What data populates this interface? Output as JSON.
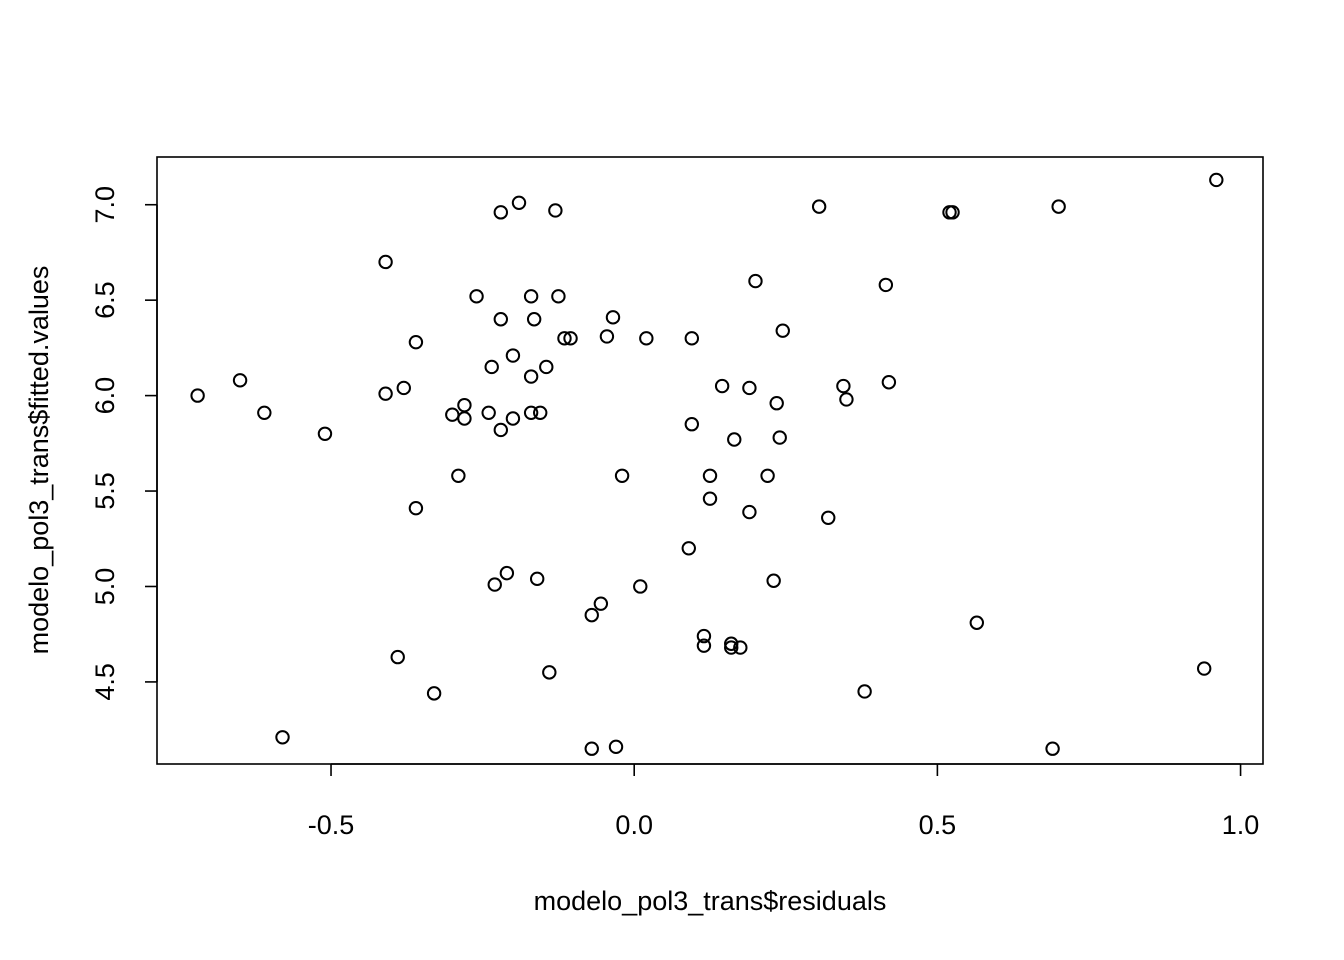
{
  "chart_data": {
    "type": "scatter",
    "title": "",
    "xlabel": "modelo_pol3_trans$residuals",
    "ylabel": "modelo_pol3_trans$fitted.values",
    "xlim": [
      -0.787,
      1.037
    ],
    "ylim": [
      4.07,
      7.25
    ],
    "xticks": [
      -0.5,
      0.0,
      0.5,
      1.0
    ],
    "xtick_labels": [
      "-0.5",
      "0.0",
      "0.5",
      "1.0"
    ],
    "yticks": [
      4.5,
      5.0,
      5.5,
      6.0,
      6.5,
      7.0
    ],
    "ytick_labels": [
      "4.5",
      "5.0",
      "5.5",
      "6.0",
      "6.5",
      "7.0"
    ],
    "grid": false,
    "legend": "none",
    "point_style": "open-circle",
    "color": "#000000",
    "x": [
      -0.72,
      -0.65,
      -0.61,
      -0.58,
      -0.51,
      -0.41,
      -0.41,
      -0.39,
      -0.38,
      -0.36,
      -0.36,
      -0.33,
      -0.3,
      -0.29,
      -0.28,
      -0.28,
      -0.26,
      -0.24,
      -0.235,
      -0.23,
      -0.22,
      -0.22,
      -0.22,
      -0.21,
      -0.2,
      -0.2,
      -0.19,
      -0.17,
      -0.17,
      -0.17,
      -0.165,
      -0.16,
      -0.155,
      -0.145,
      -0.14,
      -0.13,
      -0.125,
      -0.115,
      -0.105,
      -0.07,
      -0.07,
      -0.055,
      -0.045,
      -0.035,
      -0.03,
      -0.02,
      0.01,
      0.02,
      0.09,
      0.095,
      0.095,
      0.115,
      0.115,
      0.125,
      0.125,
      0.145,
      0.16,
      0.16,
      0.165,
      0.175,
      0.19,
      0.19,
      0.2,
      0.22,
      0.23,
      0.235,
      0.24,
      0.245,
      0.305,
      0.32,
      0.345,
      0.35,
      0.38,
      0.415,
      0.42,
      0.52,
      0.525,
      0.565,
      0.69,
      0.7,
      0.94,
      0.96
    ],
    "y": [
      6.0,
      6.08,
      5.91,
      4.21,
      5.8,
      6.7,
      6.01,
      4.63,
      6.04,
      6.28,
      5.41,
      4.44,
      5.9,
      5.58,
      5.95,
      5.88,
      6.52,
      5.91,
      6.15,
      5.01,
      6.96,
      6.4,
      5.82,
      5.07,
      6.21,
      5.88,
      7.01,
      6.52,
      6.1,
      5.91,
      6.4,
      5.04,
      5.91,
      6.15,
      4.55,
      6.97,
      6.52,
      6.3,
      6.3,
      4.85,
      4.15,
      4.91,
      6.31,
      6.41,
      4.16,
      5.58,
      5.0,
      6.3,
      5.2,
      5.85,
      6.3,
      4.74,
      4.69,
      5.58,
      5.46,
      6.05,
      4.7,
      4.68,
      5.77,
      4.68,
      6.04,
      5.39,
      6.6,
      5.58,
      5.03,
      5.96,
      5.78,
      6.34,
      6.99,
      5.36,
      6.05,
      5.98,
      4.45,
      6.58,
      6.07,
      6.96,
      6.96,
      4.81,
      4.15,
      6.99,
      4.57,
      7.13
    ]
  }
}
